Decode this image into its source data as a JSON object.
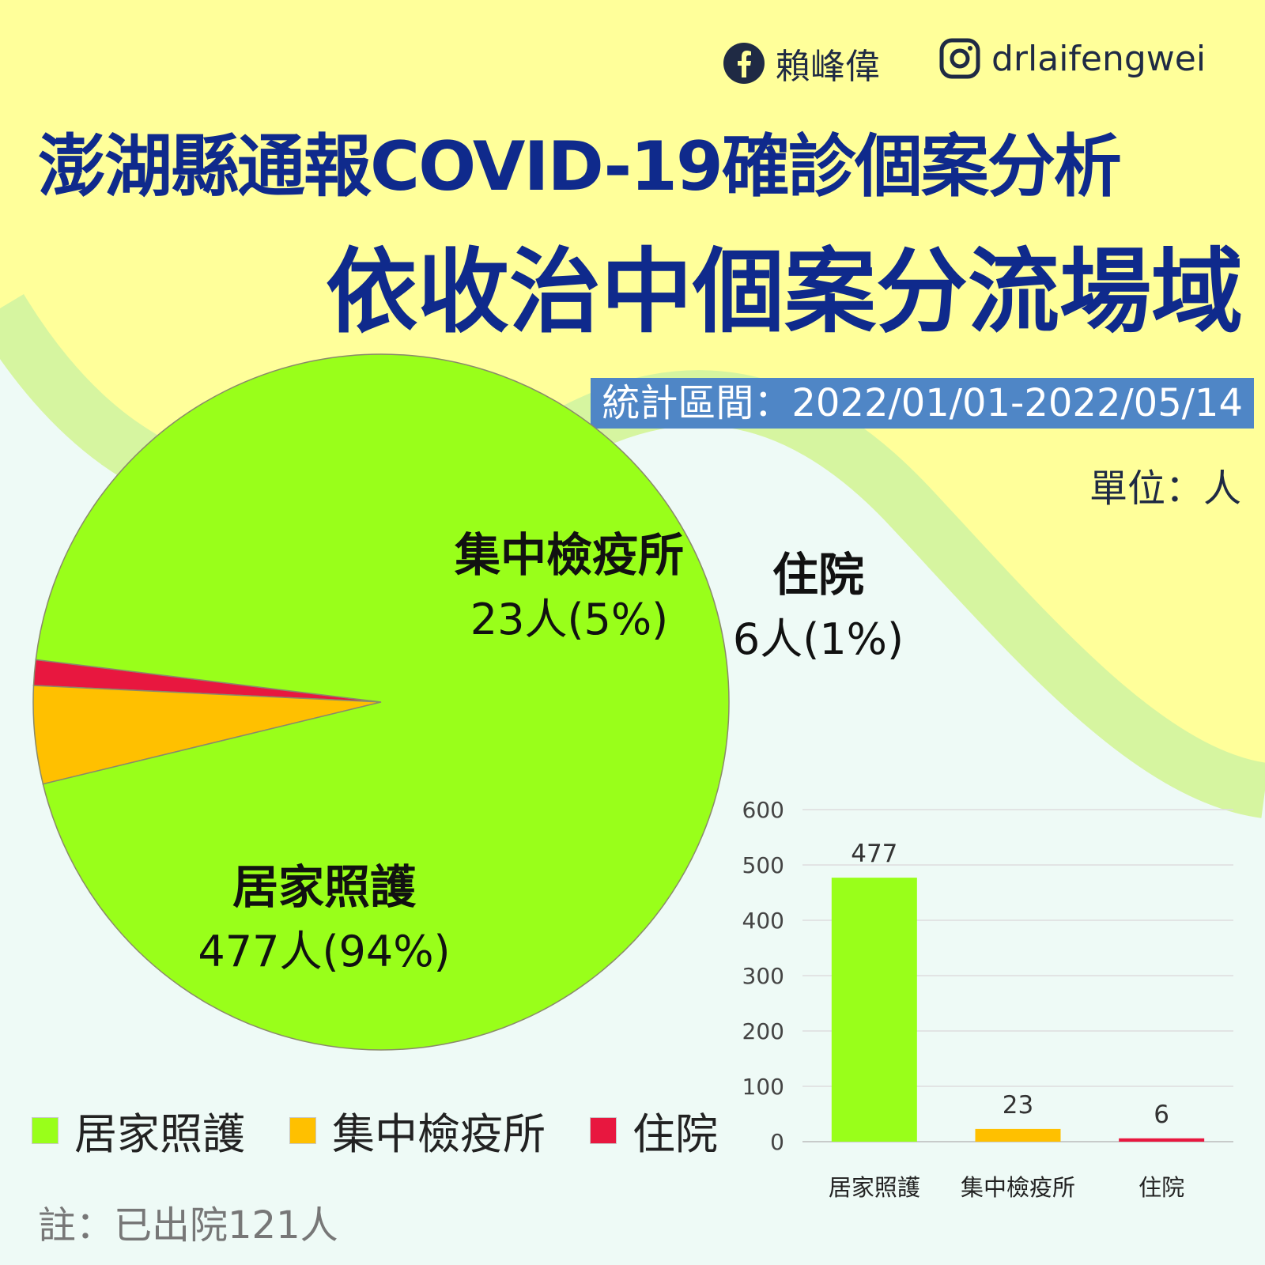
{
  "header": {
    "facebook_name": "賴峰偉",
    "instagram_handle": "drlaifengwei",
    "facebook_icon": "facebook-icon",
    "instagram_icon": "instagram-icon"
  },
  "title_line1": "澎湖縣通報COVID-19確診個案分析",
  "title_line2": "依收治中個案分流場域",
  "period": "統計區間：2022/01/01-2022/05/14",
  "unit": "單位：人",
  "note": "註：已出院121人",
  "colors": {
    "home_care": "#99ff1a",
    "quarantine": "#ffc000",
    "hospital": "#e8173f",
    "title": "#0f2a8c"
  },
  "pie_labels": [
    {
      "name": "居家照護",
      "value": "477人(94%)"
    },
    {
      "name": "集中檢疫所",
      "value": "23人(5%)"
    },
    {
      "name": "住院",
      "value": "6人(1%)"
    }
  ],
  "legend": [
    "居家照護",
    "集中檢疫所",
    "住院"
  ],
  "chart_data": [
    {
      "type": "pie",
      "categories": [
        "居家照護",
        "集中檢疫所",
        "住院"
      ],
      "values": [
        477,
        23,
        6
      ],
      "percentages": [
        94,
        5,
        1
      ],
      "legend_position": "bottom-left"
    },
    {
      "type": "bar",
      "categories": [
        "居家照護",
        "集中檢疫所",
        "住院"
      ],
      "values": [
        477,
        23,
        6
      ],
      "ylim": [
        0,
        600
      ],
      "yticks": [
        0,
        100,
        200,
        300,
        400,
        500,
        600
      ],
      "grid": true
    }
  ]
}
